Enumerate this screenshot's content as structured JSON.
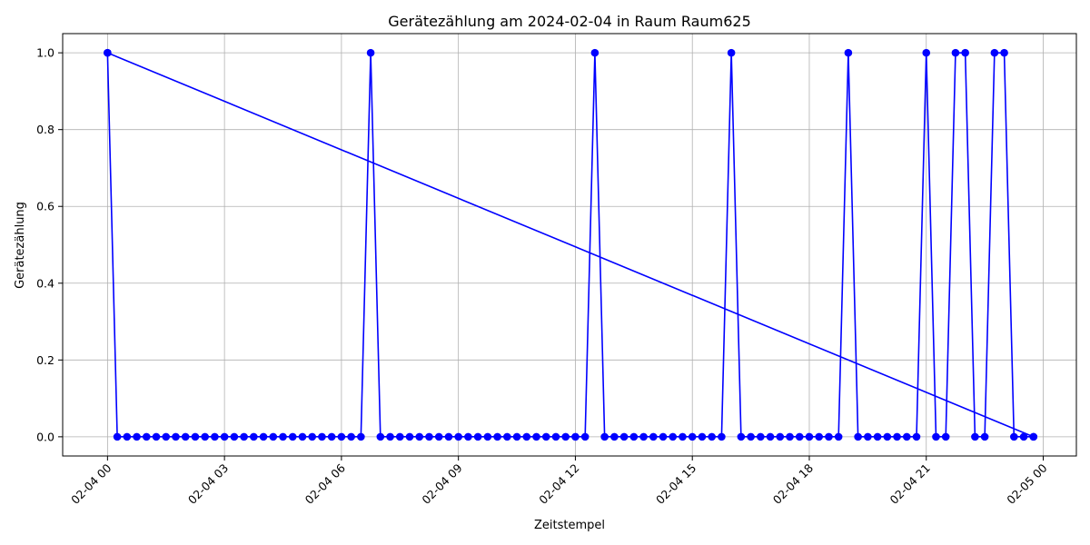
{
  "chart_data": {
    "type": "line",
    "title": "Gerätezählung am 2024-02-04 in Raum Raum625",
    "xlabel": "Zeitstempel",
    "ylabel": "Gerätezählung",
    "x_tick_labels": [
      "02-04 00",
      "02-04 03",
      "02-04 06",
      "02-04 09",
      "02-04 12",
      "02-04 15",
      "02-04 18",
      "02-04 21",
      "02-05 00"
    ],
    "x_tick_hours": [
      0,
      3,
      6,
      9,
      12,
      15,
      18,
      21,
      24
    ],
    "y_tick_labels": [
      "0.0",
      "0.2",
      "0.4",
      "0.6",
      "0.8",
      "1.0"
    ],
    "y_ticks": [
      0,
      0.2,
      0.4,
      0.6,
      0.8,
      1.0
    ],
    "xlim_hours": [
      -1.15,
      24.85
    ],
    "ylim": [
      -0.05,
      1.05
    ],
    "grid": true,
    "line_color": "#0000ff",
    "marker": "circle",
    "series": [
      {
        "x_hours": [
          0,
          0.25,
          0.5,
          0.75,
          1,
          1.25,
          1.5,
          1.75,
          2,
          2.25,
          2.5,
          2.75,
          3,
          3.25,
          3.5,
          3.75,
          4,
          4.25,
          4.5,
          4.75,
          5,
          5.25,
          5.5,
          5.75,
          6,
          6.25,
          6.5,
          6.75,
          7,
          7.25,
          7.5,
          7.75,
          8,
          8.25,
          8.5,
          8.75,
          9,
          9.25,
          9.5,
          9.75,
          10,
          10.25,
          10.5,
          10.75,
          11,
          11.25,
          11.5,
          11.75,
          12,
          12.25,
          12.5,
          12.75,
          13,
          13.25,
          13.5,
          13.75,
          14,
          14.25,
          14.5,
          14.75,
          15,
          15.25,
          15.5,
          15.75,
          16,
          16.25,
          16.5,
          16.75,
          17,
          17.25,
          17.5,
          17.75,
          18,
          18.25,
          18.5,
          18.75,
          19,
          19.25,
          19.5,
          19.75,
          20,
          20.25,
          20.5,
          20.75,
          21,
          21.25,
          21.5,
          21.75,
          22,
          22.25,
          22.5,
          22.75,
          23,
          23.25,
          23.5,
          23.75,
          0,
          23.75
        ],
        "y": [
          1,
          0,
          0,
          0,
          0,
          0,
          0,
          0,
          0,
          0,
          0,
          0,
          0,
          0,
          0,
          0,
          0,
          0,
          0,
          0,
          0,
          0,
          0,
          0,
          0,
          0,
          0,
          1,
          0,
          0,
          0,
          0,
          0,
          0,
          0,
          0,
          0,
          0,
          0,
          0,
          0,
          0,
          0,
          0,
          0,
          0,
          0,
          0,
          0,
          0,
          1,
          0,
          0,
          0,
          0,
          0,
          0,
          0,
          0,
          0,
          0,
          0,
          0,
          0,
          1,
          0,
          0,
          0,
          0,
          0,
          0,
          0,
          0,
          0,
          0,
          0,
          1,
          0,
          0,
          0,
          0,
          0,
          0,
          0,
          1,
          0,
          0,
          1,
          1,
          0,
          0,
          1,
          1,
          0,
          0,
          0,
          1,
          0
        ]
      }
    ]
  }
}
